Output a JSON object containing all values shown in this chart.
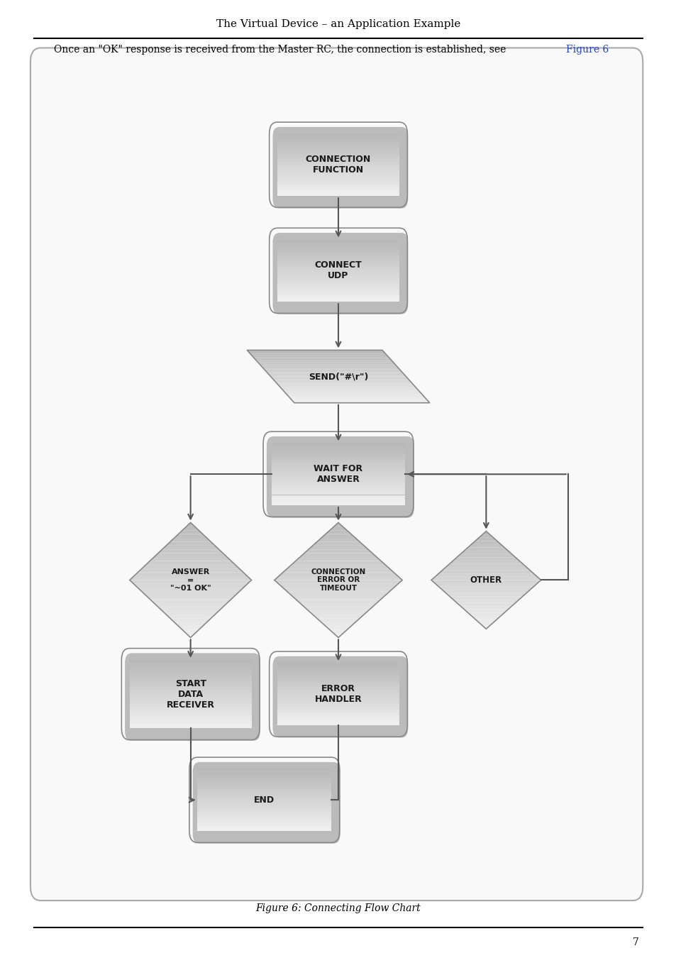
{
  "title": "The Virtual Device – an Application Example",
  "subtitle_plain": "Once an \"OK\" response is received from the Master RC, the connection is established, see ",
  "subtitle_link": "Figure 6",
  "caption": "Figure 6: Connecting Flow Chart",
  "page_number": "7",
  "bg_color": "#ffffff",
  "arrow_color": "#555555",
  "nodes": {
    "CONNECTION_FUNCTION": {
      "label": "CONNECTION\nFUNCTION"
    },
    "CONNECT_UDP": {
      "label": "CONNECT\nUDP"
    },
    "SEND": {
      "label": "SEND(\"#\\r\")"
    },
    "WAIT_FOR_ANSWER": {
      "label": "WAIT FOR\nANSWER"
    },
    "ANSWER_OK": {
      "label": "ANSWER\n=\n\"~01 OK\""
    },
    "CONN_ERROR": {
      "label": "CONNECTION\nERROR OR\nTIMEOUT"
    },
    "OTHER": {
      "label": "OTHER"
    },
    "START_DATA": {
      "label": "START\nDATA\nRECEIVER"
    },
    "ERROR_HANDLER": {
      "label": "ERROR\nHANDLER"
    },
    "END": {
      "label": "END"
    }
  }
}
